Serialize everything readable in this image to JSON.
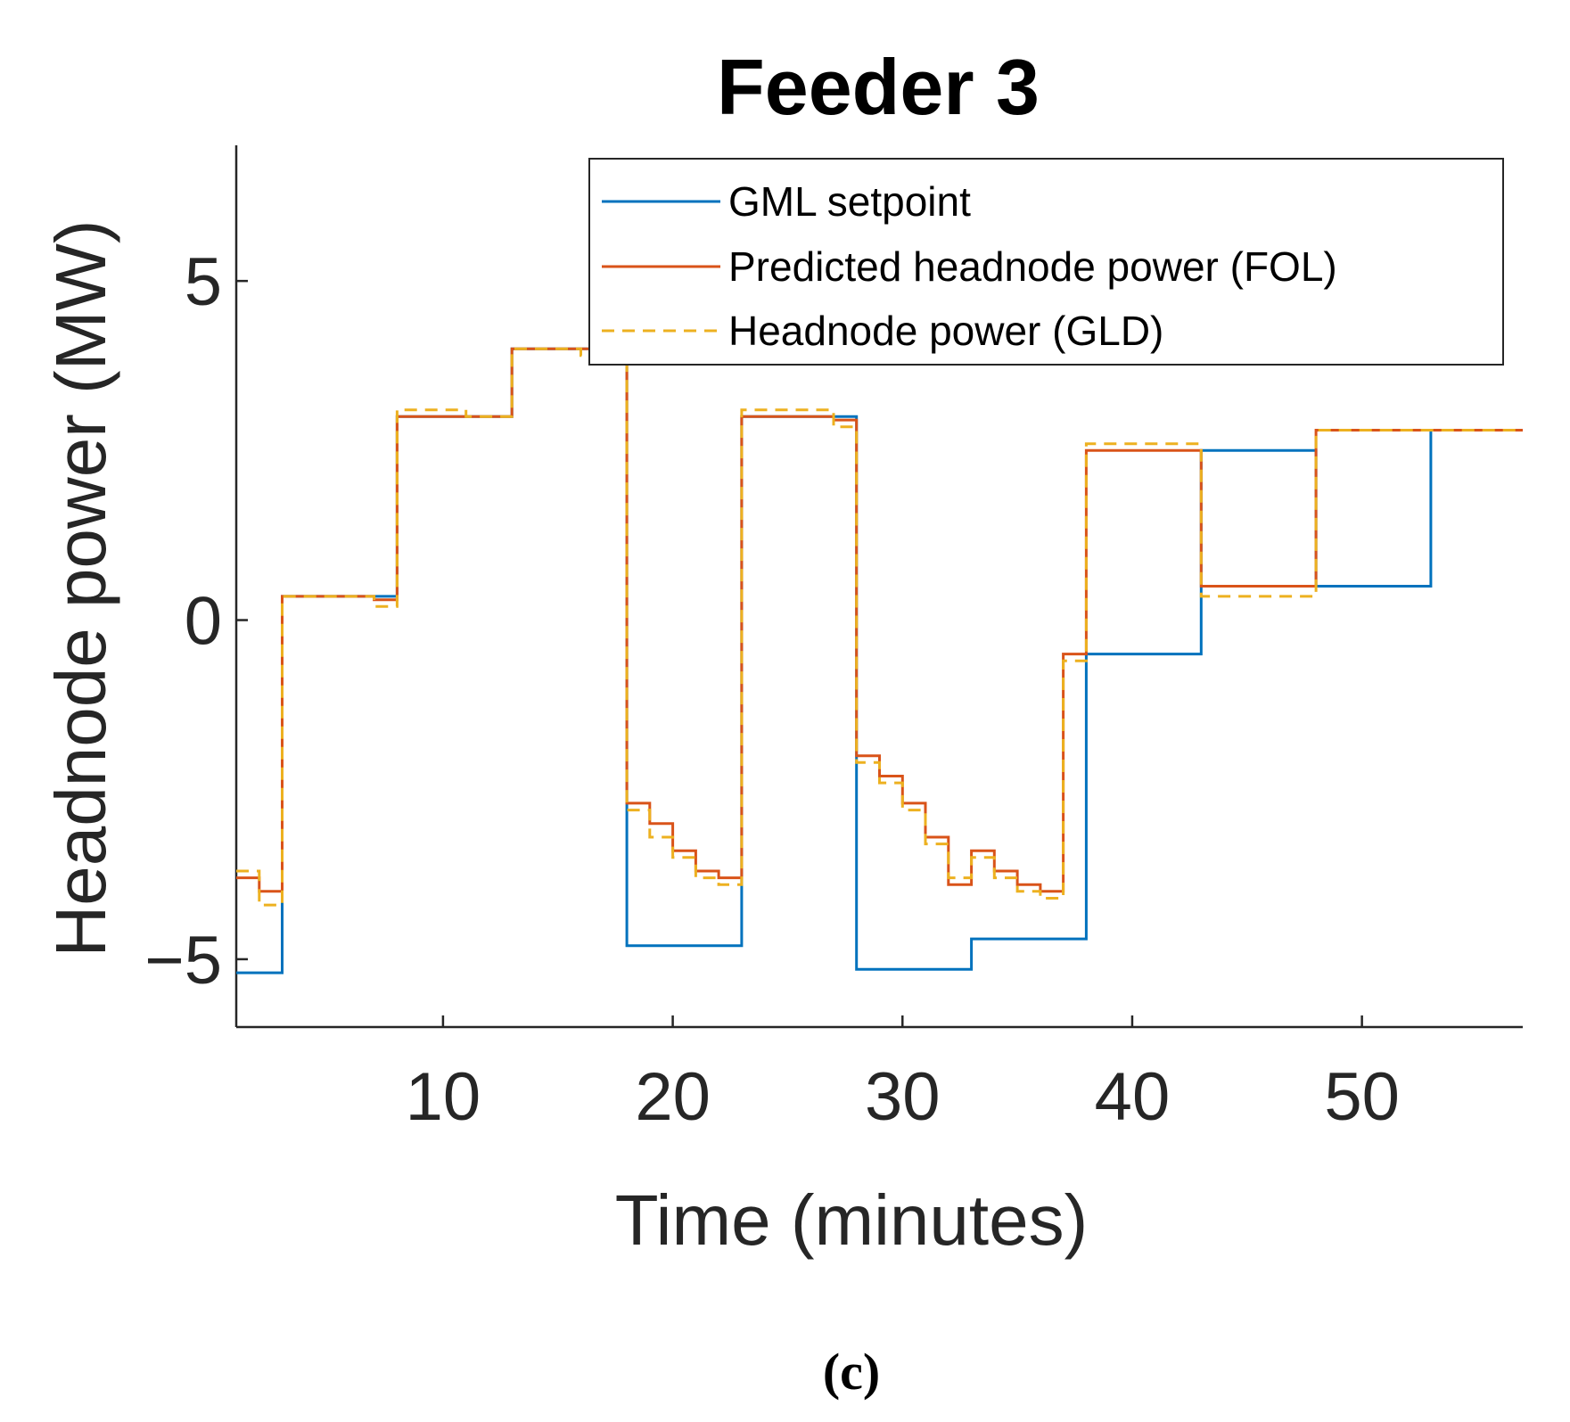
{
  "chart_data": {
    "type": "line",
    "title": "Feeder 3",
    "xlabel": "Time (minutes)",
    "ylabel": "Headnode power (MW)",
    "xlim": [
      1,
      57
    ],
    "ylim": [
      -6,
      7
    ],
    "xticks": [
      10,
      20,
      30,
      40,
      50
    ],
    "yticks": [
      -5,
      0,
      5
    ],
    "xtick_labels": [
      "10",
      "20",
      "30",
      "40",
      "50"
    ],
    "ytick_labels": [
      "−5",
      "0",
      "5"
    ],
    "grid": false,
    "legend_position": "top-right",
    "series": [
      {
        "name": "GML setpoint",
        "color": "#0072BD",
        "style": "solid",
        "x": [
          1,
          3,
          3,
          8,
          8,
          13,
          13,
          18,
          18,
          23,
          23,
          28,
          28,
          33,
          33,
          38,
          38,
          43,
          43,
          48,
          48,
          53,
          53,
          57
        ],
        "y": [
          -5.2,
          -5.2,
          0.35,
          0.35,
          3.0,
          3.0,
          4.0,
          4.0,
          -4.8,
          -4.8,
          3.0,
          3.0,
          -5.15,
          -5.15,
          -4.7,
          -4.7,
          -0.5,
          -0.5,
          2.5,
          2.5,
          0.5,
          0.5,
          2.8,
          2.8
        ]
      },
      {
        "name": "Predicted headnode power (FOL)",
        "color": "#D95319",
        "style": "solid",
        "x": [
          1,
          2,
          2,
          3,
          3,
          7,
          7,
          8,
          8,
          13,
          13,
          18,
          18,
          19,
          19,
          20,
          20,
          21,
          21,
          22,
          22,
          23,
          23,
          27,
          27,
          28,
          28,
          29,
          29,
          30,
          30,
          31,
          31,
          32,
          32,
          33,
          33,
          34,
          34,
          35,
          35,
          36,
          36,
          37,
          37,
          38,
          38,
          43,
          43,
          48,
          48,
          53,
          53,
          57
        ],
        "y": [
          -3.8,
          -3.8,
          -4.0,
          -4.0,
          0.35,
          0.35,
          0.3,
          0.3,
          3.0,
          3.0,
          4.0,
          4.0,
          -2.7,
          -2.7,
          -3.0,
          -3.0,
          -3.4,
          -3.4,
          -3.7,
          -3.7,
          -3.8,
          -3.8,
          3.0,
          3.0,
          2.95,
          2.95,
          -2.0,
          -2.0,
          -2.3,
          -2.3,
          -2.7,
          -2.7,
          -3.2,
          -3.2,
          -3.9,
          -3.9,
          -3.4,
          -3.4,
          -3.7,
          -3.7,
          -3.9,
          -3.9,
          -4.0,
          -4.0,
          -0.5,
          -0.5,
          2.5,
          2.5,
          0.5,
          0.5,
          2.8,
          2.8,
          2.8,
          2.8
        ]
      },
      {
        "name": "Headnode power (GLD)",
        "color": "#EDB120",
        "style": "dashed",
        "x": [
          1,
          2,
          2,
          3,
          3,
          7,
          7,
          8,
          8,
          11,
          11,
          13,
          13,
          16,
          16,
          18,
          18,
          19,
          19,
          20,
          20,
          21,
          21,
          22,
          22,
          23,
          23,
          27,
          27,
          28,
          28,
          29,
          29,
          30,
          30,
          31,
          31,
          32,
          32,
          33,
          33,
          34,
          34,
          35,
          35,
          36,
          36,
          37,
          37,
          38,
          38,
          43,
          43,
          48,
          48,
          53,
          53,
          57
        ],
        "y": [
          -3.7,
          -3.7,
          -4.2,
          -4.2,
          0.35,
          0.35,
          0.2,
          0.2,
          3.1,
          3.1,
          3.0,
          3.0,
          4.0,
          4.0,
          3.9,
          3.9,
          -2.8,
          -2.8,
          -3.2,
          -3.2,
          -3.5,
          -3.5,
          -3.8,
          -3.8,
          -3.9,
          -3.9,
          3.1,
          3.1,
          2.85,
          2.85,
          -2.1,
          -2.1,
          -2.4,
          -2.4,
          -2.8,
          -2.8,
          -3.3,
          -3.3,
          -3.8,
          -3.8,
          -3.5,
          -3.5,
          -3.8,
          -3.8,
          -4.0,
          -4.0,
          -4.1,
          -4.1,
          -0.6,
          -0.6,
          2.6,
          2.6,
          0.35,
          0.35,
          2.8,
          2.8,
          2.8,
          2.8
        ]
      }
    ]
  },
  "caption": "(c)"
}
